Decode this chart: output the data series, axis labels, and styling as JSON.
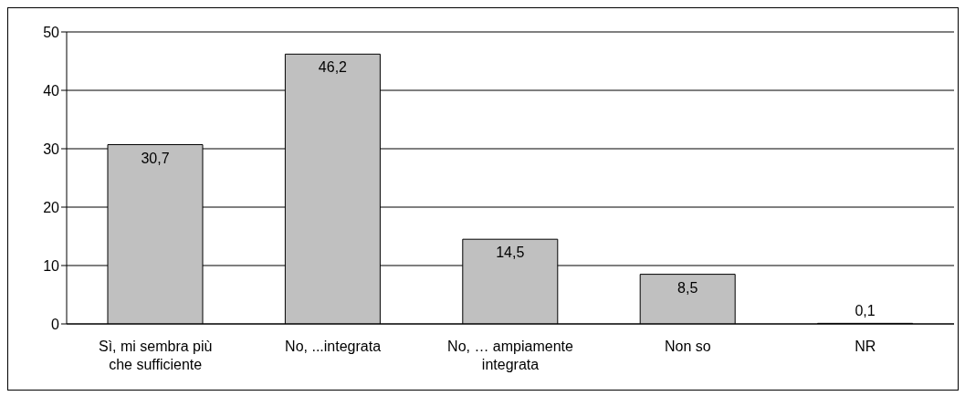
{
  "chart_data": {
    "type": "bar",
    "categories": [
      "Sì, mi sembra più che sufficiente",
      "No, ...integrata",
      "No, … ampiamente integrata",
      "Non so",
      "NR"
    ],
    "values": [
      30.7,
      46.2,
      14.5,
      8.5,
      0.1
    ],
    "value_labels": [
      "30,7",
      "46,2",
      "14,5",
      "8,5",
      "0,1"
    ],
    "color": "#c0c0c0",
    "ylim": [
      0,
      50
    ],
    "yticks": [
      0,
      10,
      20,
      30,
      40,
      50
    ],
    "grid": "y",
    "legend": false
  }
}
